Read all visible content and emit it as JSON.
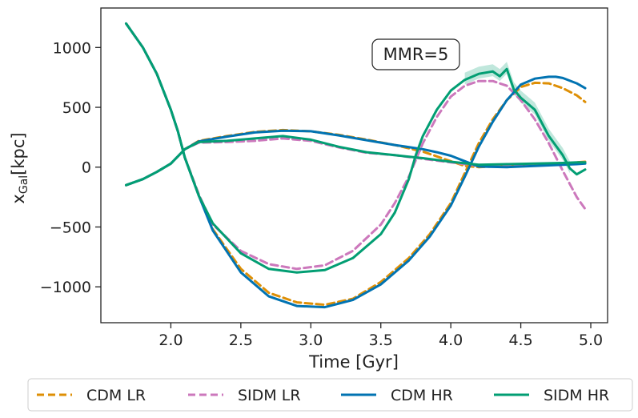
{
  "chart_data": {
    "type": "line",
    "title": "",
    "xlabel": "Time [Gyr]",
    "ylabel_main": "x",
    "ylabel_sub": "Gal",
    "ylabel_unit": "[kpc]",
    "xlim": [
      1.5,
      5.12
    ],
    "ylim": [
      -1300,
      1330
    ],
    "xticks": [
      2.0,
      2.5,
      3.0,
      3.5,
      4.0,
      4.5,
      5.0
    ],
    "xtick_labels": [
      "2.0",
      "2.5",
      "3.0",
      "3.5",
      "4.0",
      "4.5",
      "5.0"
    ],
    "yticks": [
      1000,
      500,
      0,
      -500,
      -1000
    ],
    "ytick_labels": [
      "1000",
      "500",
      "0",
      "−500",
      "−1000"
    ],
    "annotation": "MMR=5",
    "legend_position": "bottom",
    "series": [
      {
        "name": "CDM LR",
        "color": "#de8f05",
        "style": "dashed",
        "lines": [
          {
            "x": [
              1.68,
              1.8,
              1.9,
              2.0,
              2.05,
              2.1,
              2.2,
              2.3,
              2.5,
              2.7,
              2.9,
              3.1,
              3.3,
              3.5,
              3.7,
              3.85,
              4.0,
              4.1,
              4.2,
              4.3,
              4.4,
              4.5,
              4.6,
              4.7,
              4.8,
              4.9,
              4.96
            ],
            "y": [
              1200,
              1000,
              780,
              480,
              300,
              80,
              -230,
              -520,
              -850,
              -1050,
              -1130,
              -1150,
              -1100,
              -960,
              -760,
              -560,
              -300,
              -50,
              200,
              400,
              560,
              670,
              705,
              700,
              660,
              600,
              545
            ]
          },
          {
            "x": [
              1.68,
              1.8,
              1.9,
              2.0,
              2.05,
              2.1,
              2.2,
              2.4,
              2.6,
              2.8,
              3.0,
              3.2,
              3.4,
              3.6,
              3.8,
              3.9,
              4.0,
              4.1,
              4.2,
              4.4,
              4.6,
              4.8,
              4.9,
              4.96
            ],
            "y": [
              -150,
              -100,
              -40,
              30,
              90,
              150,
              220,
              260,
              295,
              310,
              300,
              270,
              230,
              185,
              130,
              90,
              50,
              10,
              0,
              10,
              20,
              30,
              40,
              45
            ]
          }
        ]
      },
      {
        "name": "SIDM LR",
        "color": "#cc78bc",
        "style": "dashed",
        "lines": [
          {
            "x": [
              1.68,
              1.8,
              1.9,
              2.0,
              2.05,
              2.1,
              2.2,
              2.3,
              2.5,
              2.7,
              2.9,
              3.1,
              3.3,
              3.5,
              3.6,
              3.7,
              3.8,
              3.9,
              4.0,
              4.1,
              4.2,
              4.3,
              4.4,
              4.5,
              4.6,
              4.7,
              4.8,
              4.9,
              4.96
            ],
            "y": [
              1200,
              1000,
              780,
              480,
              300,
              80,
              -230,
              -480,
              -700,
              -810,
              -850,
              -820,
              -700,
              -480,
              -300,
              -80,
              200,
              420,
              590,
              680,
              720,
              720,
              680,
              560,
              400,
              200,
              -30,
              -250,
              -350
            ]
          },
          {
            "x": [
              1.68,
              1.8,
              1.9,
              2.0,
              2.05,
              2.1,
              2.2,
              2.4,
              2.6,
              2.8,
              3.0,
              3.2,
              3.4,
              3.6,
              3.8,
              4.0,
              4.2,
              4.4,
              4.6,
              4.8,
              4.96
            ],
            "y": [
              -150,
              -100,
              -40,
              30,
              90,
              150,
              205,
              210,
              220,
              240,
              220,
              165,
              120,
              100,
              70,
              40,
              10,
              20,
              25,
              30,
              40
            ]
          }
        ]
      },
      {
        "name": "CDM HR",
        "color": "#0173b2",
        "style": "solid",
        "lines": [
          {
            "x": [
              1.68,
              1.8,
              1.9,
              2.0,
              2.05,
              2.1,
              2.2,
              2.3,
              2.5,
              2.7,
              2.9,
              3.1,
              3.3,
              3.5,
              3.7,
              3.85,
              4.0,
              4.1,
              4.2,
              4.3,
              4.4,
              4.5,
              4.6,
              4.7,
              4.75,
              4.8,
              4.9,
              4.96
            ],
            "y": [
              1200,
              1000,
              780,
              480,
              300,
              80,
              -240,
              -530,
              -880,
              -1080,
              -1160,
              -1170,
              -1110,
              -980,
              -780,
              -580,
              -320,
              -80,
              170,
              380,
              560,
              690,
              740,
              755,
              755,
              745,
              700,
              660
            ]
          },
          {
            "x": [
              1.68,
              1.8,
              1.9,
              2.0,
              2.05,
              2.1,
              2.2,
              2.4,
              2.6,
              2.8,
              3.0,
              3.2,
              3.4,
              3.6,
              3.8,
              3.9,
              4.0,
              4.1,
              4.2,
              4.4,
              4.6,
              4.8,
              4.9,
              4.96
            ],
            "y": [
              -150,
              -100,
              -40,
              30,
              90,
              150,
              215,
              255,
              290,
              305,
              300,
              265,
              225,
              185,
              150,
              125,
              95,
              50,
              5,
              0,
              10,
              20,
              25,
              30
            ]
          }
        ]
      },
      {
        "name": "SIDM HR",
        "color": "#029e73",
        "style": "solid",
        "lines": [
          {
            "x": [
              1.68,
              1.8,
              1.9,
              2.0,
              2.05,
              2.1,
              2.2,
              2.3,
              2.5,
              2.7,
              2.9,
              3.1,
              3.3,
              3.5,
              3.6,
              3.7,
              3.75,
              3.8,
              3.9,
              4.0,
              4.1,
              4.2,
              4.3,
              4.35,
              4.4,
              4.45,
              4.5,
              4.6,
              4.7,
              4.8,
              4.85,
              4.9,
              4.96
            ],
            "y": [
              1200,
              1000,
              780,
              480,
              300,
              80,
              -240,
              -470,
              -720,
              -850,
              -880,
              -860,
              -760,
              -560,
              -380,
              -100,
              100,
              260,
              480,
              640,
              730,
              780,
              800,
              760,
              820,
              650,
              580,
              480,
              260,
              100,
              -10,
              -60,
              -20
            ]
          },
          {
            "x": [
              1.68,
              1.8,
              1.9,
              2.0,
              2.05,
              2.1,
              2.2,
              2.4,
              2.6,
              2.8,
              3.0,
              3.2,
              3.4,
              3.6,
              3.8,
              4.0,
              4.2,
              4.4,
              4.6,
              4.8,
              4.9,
              4.96
            ],
            "y": [
              -150,
              -100,
              -40,
              30,
              90,
              150,
              210,
              220,
              240,
              260,
              230,
              170,
              125,
              100,
              75,
              45,
              20,
              25,
              30,
              35,
              40,
              40
            ]
          }
        ]
      }
    ]
  }
}
